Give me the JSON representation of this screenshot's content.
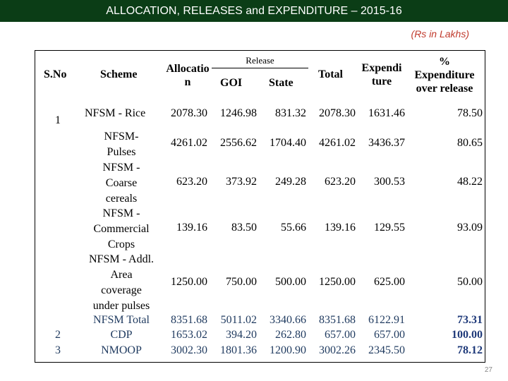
{
  "title": "ALLOCATION, RELEASES and  EXPENDITURE – 2015-16",
  "units": "(Rs in Lakhs)",
  "headers": {
    "sno": "S.No",
    "scheme": "Scheme",
    "allocation_1": "Allocatio",
    "allocation_2": "n",
    "release": "Release",
    "goi": "GOI",
    "state": "State",
    "total": "Total",
    "expenditure_1": "Expendi",
    "expenditure_2": "ture",
    "pct_1": "%",
    "pct_2": "Expenditure",
    "pct_3": "over release"
  },
  "rows": [
    {
      "sno": "1",
      "scheme": [
        "NFSM - Rice"
      ],
      "allocation": "2078.30",
      "goi": "1246.98",
      "state": "831.32",
      "total": "2078.30",
      "expenditure": "1631.46",
      "pct": "78.50"
    },
    {
      "sno": "",
      "scheme": [
        "NFSM-",
        "Pulses"
      ],
      "allocation": "4261.02",
      "goi": "2556.62",
      "state": "1704.40",
      "total": "4261.02",
      "expenditure": "3436.37",
      "pct": "80.65"
    },
    {
      "sno": "",
      "scheme": [
        "NFSM -",
        "Coarse",
        "cereals"
      ],
      "allocation": "623.20",
      "goi": "373.92",
      "state": "249.28",
      "total": "623.20",
      "expenditure": "300.53",
      "pct": "48.22"
    },
    {
      "sno": "",
      "scheme": [
        "NFSM -",
        "Commercial",
        "Crops"
      ],
      "allocation": "139.16",
      "goi": "83.50",
      "state": "55.66",
      "total": "139.16",
      "expenditure": "129.55",
      "pct": "93.09"
    },
    {
      "sno": "",
      "scheme": [
        "NFSM - Addl.",
        "Area",
        "coverage",
        "under pulses"
      ],
      "allocation": "1250.00",
      "goi": "750.00",
      "state": "500.00",
      "total": "1250.00",
      "expenditure": "625.00",
      "pct": "50.00"
    },
    {
      "sno": "",
      "scheme": [
        "NFSM Total"
      ],
      "allocation": "8351.68",
      "goi": "5011.02",
      "state": "3340.66",
      "total": "8351.68",
      "expenditure": "6122.91",
      "pct": "73.31"
    },
    {
      "sno": "2",
      "scheme": [
        "CDP"
      ],
      "allocation": "1653.02",
      "goi": "394.20",
      "state": "262.80",
      "total": "657.00",
      "expenditure": "657.00",
      "pct": "100.00"
    },
    {
      "sno": "3",
      "scheme": [
        "NMOOP"
      ],
      "allocation": "3002.30",
      "goi": "1801.36",
      "state": "1200.90",
      "total": "3002.26",
      "expenditure": "2345.50",
      "pct": "78.12"
    }
  ],
  "page_number": "27"
}
